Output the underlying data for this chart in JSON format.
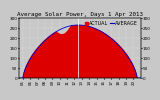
{
  "title": "Average Solar Power, Days 1 Apr 2013",
  "legend_actual": "ACTUAL",
  "legend_average": "AVERAGE",
  "bg_color": "#c8c8c8",
  "plot_bg_color": "#c8c8c8",
  "fill_color": "#dd0000",
  "line_color": "#ffffff",
  "avg_line_color": "#0000cc",
  "ylim": [
    0,
    300
  ],
  "peak_hour": 12.5,
  "peak_value": 265,
  "start_hour": 5.0,
  "end_hour": 20.5,
  "title_fontsize": 4.2,
  "tick_fontsize": 3.0,
  "legend_fontsize": 3.5,
  "grid_color": "#ffffff",
  "yticks_left": [
    0,
    50,
    100,
    150,
    200,
    250,
    300
  ],
  "ytick_labels_left": [
    "0",
    "50",
    "100",
    "150",
    "200",
    "250",
    "300"
  ],
  "yticks_right": [
    0,
    50,
    100,
    150,
    200,
    250,
    300
  ],
  "xtick_hours": [
    5,
    6,
    7,
    8,
    9,
    10,
    11,
    12,
    13,
    14,
    15,
    16,
    17,
    18,
    19,
    20
  ]
}
